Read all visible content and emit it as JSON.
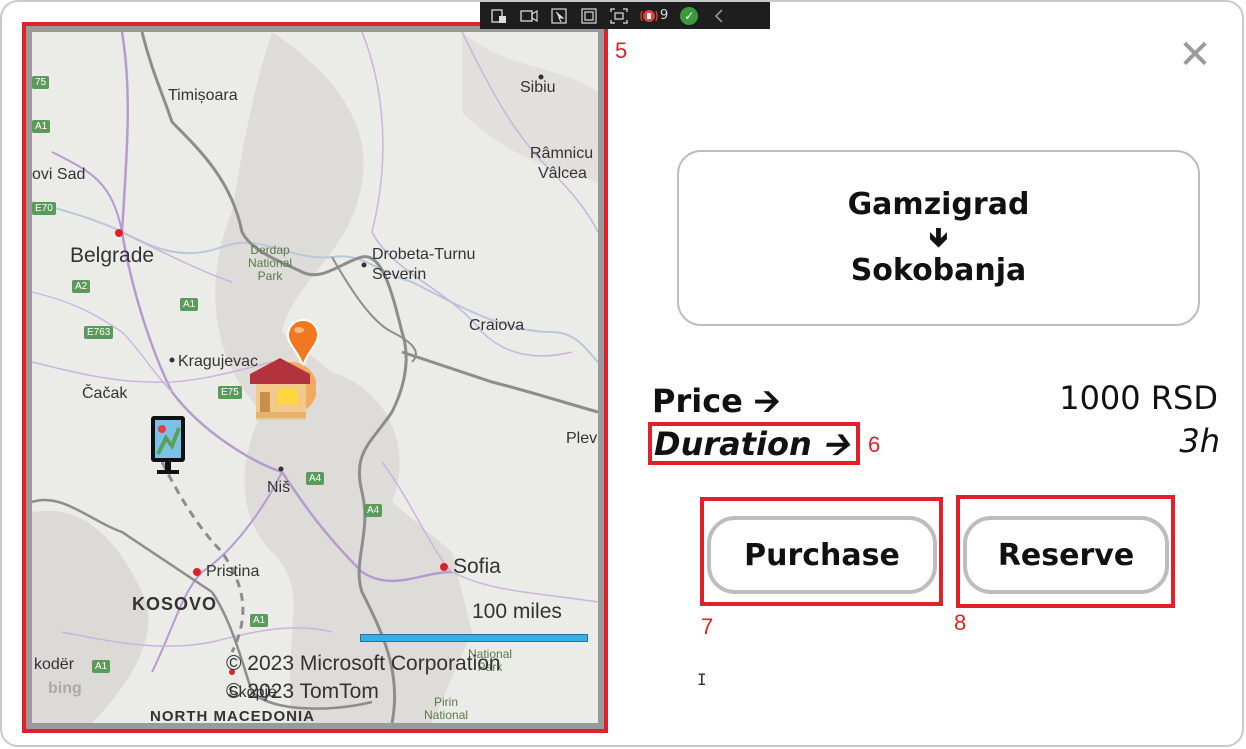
{
  "map": {
    "cities": [
      {
        "name": "Timișoara"
      },
      {
        "name": "Sibiu"
      },
      {
        "name": "Râmnicu"
      },
      {
        "name": "Vâlcea"
      },
      {
        "name": "ovi Sad"
      },
      {
        "name": "Belgrade"
      },
      {
        "name": "Drobeta-Turnu"
      },
      {
        "name": "Severin"
      },
      {
        "name": "Craiova"
      },
      {
        "name": "Kragujevac"
      },
      {
        "name": "Čačak"
      },
      {
        "name": "Niš"
      },
      {
        "name": "Plev"
      },
      {
        "name": "Sofia"
      },
      {
        "name": "Pristina"
      },
      {
        "name": "KOSOVO"
      },
      {
        "name": "Skopje"
      },
      {
        "name": "NORTH MACEDONIA"
      },
      {
        "name": "kodër"
      }
    ],
    "parks": [
      {
        "line1": "Derdap",
        "line2": "National",
        "line3": "Park"
      },
      {
        "line1": "National",
        "line2": "Park"
      },
      {
        "line1": "Pirin",
        "line2": "National"
      }
    ],
    "shields": [
      "75",
      "A1",
      "E70",
      "A2",
      "A1",
      "E763",
      "E75",
      "A4",
      "A4",
      "A1",
      "A1"
    ],
    "scale_label": "100 miles",
    "copyright_1": "© 2023 Microsoft Corporation",
    "copyright_2": "© 2023 TomTom",
    "brand": "bing",
    "marker_color": "#f07820"
  },
  "devbar": {
    "count": "9"
  },
  "annotations": {
    "map": "5",
    "duration": "6",
    "purchase": "7",
    "reserve": "8"
  },
  "route": {
    "from": "Gamzigrad",
    "arrow": "🡻",
    "to": "Sokobanja"
  },
  "details": {
    "price_label": "Price  🡪",
    "price_value": "1000 RSD",
    "duration_label": "Duration 🡪",
    "duration_value": "3h"
  },
  "actions": {
    "purchase": "Purchase",
    "reserve": "Reserve"
  },
  "close_icon": "✕",
  "colors": {
    "annotation": "#e0202a",
    "border": "#bdbdbd"
  }
}
